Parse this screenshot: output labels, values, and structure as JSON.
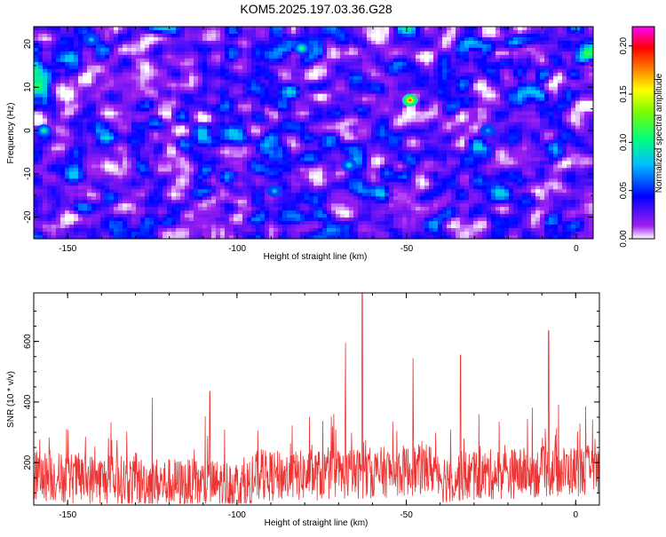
{
  "title": "KOM5.2025.197.03.36.G28",
  "chart_data": [
    {
      "type": "heatmap",
      "xlabel": "Height of straight line (km)",
      "ylabel": "Frequency (Hz)",
      "xlim": [
        -160,
        5
      ],
      "ylim": [
        -25,
        24
      ],
      "x_ticks": [
        -150,
        -100,
        -50,
        0
      ],
      "y_ticks": [
        -20,
        -10,
        0,
        10,
        20
      ],
      "colorbar": {
        "label": "Normalized spectral amplitude",
        "range": [
          0,
          0.22
        ],
        "ticks": [
          "0.00",
          "0.05",
          "0.10",
          "0.15",
          "0.20"
        ],
        "colors": [
          "#ffffff",
          "#a020f0",
          "#0000ff",
          "#00bfff",
          "#00ff7f",
          "#7cfc00",
          "#ffff00",
          "#ff7f00",
          "#ff0000",
          "#ff00ff"
        ]
      },
      "peaks": [
        {
          "x": -49,
          "y": 7,
          "value": 0.2
        },
        {
          "x": -81,
          "y": 19,
          "value": 0.12
        },
        {
          "x": -67,
          "y": -8,
          "value": 0.1
        },
        {
          "x": -89,
          "y": -14,
          "value": 0.09
        },
        {
          "x": -157,
          "y": 0,
          "value": 0.11
        },
        {
          "x": -143,
          "y": 21,
          "value": 0.09
        },
        {
          "x": -26,
          "y": 0,
          "value": 0.08
        }
      ]
    },
    {
      "type": "line",
      "xlabel": "Height of straight line (km)",
      "ylabel": "SNR (10 * v/v)",
      "xlim": [
        -160,
        7
      ],
      "ylim": [
        60,
        760
      ],
      "x_ticks": [
        -150,
        -100,
        -50,
        0
      ],
      "y_ticks": [
        200,
        400,
        600
      ],
      "color": "#ee3333",
      "peaks": [
        {
          "x": -63,
          "y": 760
        },
        {
          "x": -68,
          "y": 595
        },
        {
          "x": -8,
          "y": 635
        },
        {
          "x": -34,
          "y": 555
        },
        {
          "x": -108,
          "y": 435
        },
        {
          "x": -48,
          "y": 545
        },
        {
          "x": -125,
          "y": 415
        }
      ]
    }
  ]
}
